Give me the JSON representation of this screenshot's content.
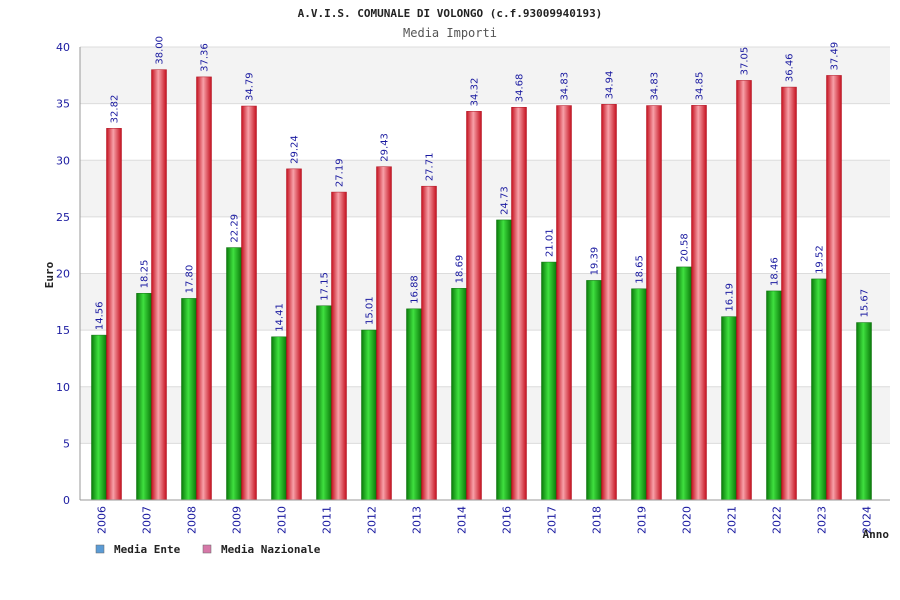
{
  "colors": {
    "ente": "#16b116",
    "ente_dark": "#0a6e0a",
    "nazionale": "#e8303c",
    "nazionale_dark": "#b01020",
    "legend_ente": "#5b9bd5",
    "legend_nazionale": "#d678a8",
    "band": "#f3f3f3",
    "grid": "#dcdcdc",
    "tick_text": "#1a1aa0"
  },
  "chart_data": {
    "type": "bar",
    "title": "A.V.I.S. COMUNALE DI VOLONGO (c.f.93009940193)",
    "subtitle": "Media Importi",
    "xlabel": "Anno",
    "ylabel": "Euro",
    "ylim": [
      0,
      40
    ],
    "yticks": [
      0,
      5,
      10,
      15,
      20,
      25,
      30,
      35,
      40
    ],
    "grid": true,
    "legend_position": "bottom-left",
    "categories": [
      "2006",
      "2007",
      "2008",
      "2009",
      "2010",
      "2011",
      "2012",
      "2013",
      "2014",
      "2016",
      "2017",
      "2018",
      "2019",
      "2020",
      "2021",
      "2022",
      "2023",
      "2024"
    ],
    "series": [
      {
        "name": "Media Ente",
        "values": [
          14.56,
          18.25,
          17.8,
          22.29,
          14.41,
          17.15,
          15.01,
          16.88,
          18.69,
          24.73,
          21.01,
          19.39,
          18.65,
          20.58,
          16.19,
          18.46,
          19.52,
          15.67
        ],
        "labels": [
          "14.56",
          "18.25",
          "17.80",
          "22.29",
          "14.41",
          "17.15",
          "15.01",
          "16.88",
          "18.69",
          "24.73",
          "21.01",
          "19.39",
          "18.65",
          "20.58",
          "16.19",
          "18.46",
          "19.52",
          "15.67"
        ]
      },
      {
        "name": "Media Nazionale",
        "values": [
          32.82,
          38.0,
          37.36,
          34.79,
          29.24,
          27.19,
          29.43,
          27.71,
          34.32,
          34.68,
          34.83,
          34.94,
          34.83,
          34.85,
          37.05,
          36.46,
          37.49,
          null
        ],
        "labels": [
          "32.82",
          "38.00",
          "37.36",
          "34.79",
          "29.24",
          "27.19",
          "29.43",
          "27.71",
          "34.32",
          "34.68",
          "34.83",
          "34.94",
          "34.83",
          "34.85",
          "37.05",
          "36.46",
          "37.49",
          ""
        ]
      }
    ]
  }
}
